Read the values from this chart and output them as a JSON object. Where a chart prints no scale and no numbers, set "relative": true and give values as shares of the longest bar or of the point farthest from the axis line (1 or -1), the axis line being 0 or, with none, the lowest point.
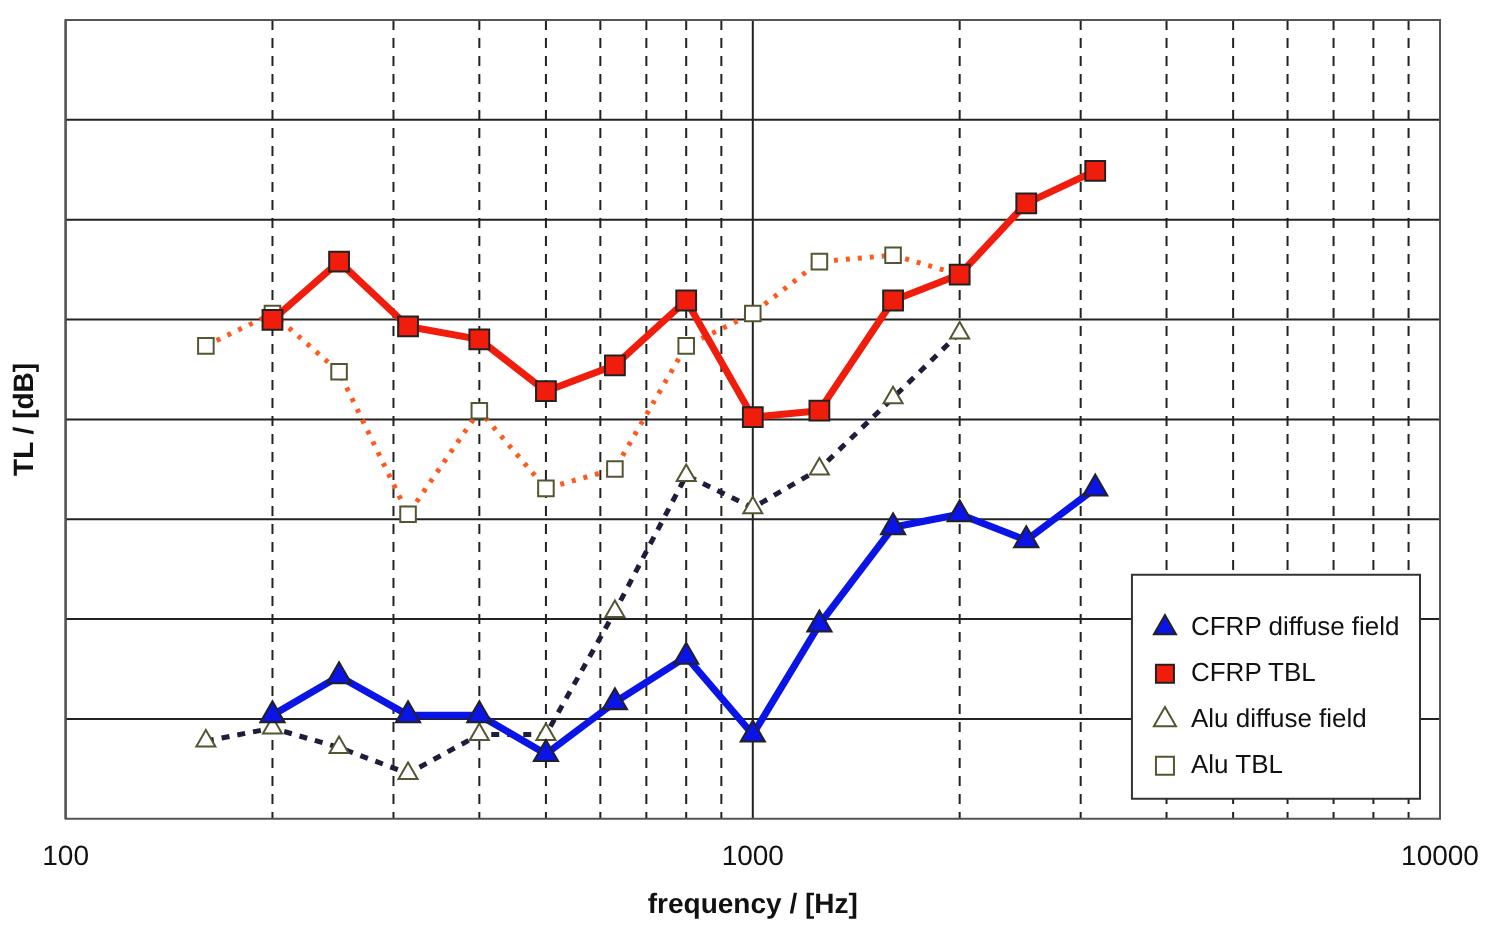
{
  "chart_data": {
    "type": "line",
    "xlabel": "frequency / [Hz]",
    "ylabel": "TL / [dB]",
    "relative": true,
    "log": "x",
    "xlim": [
      100,
      10000
    ],
    "xticks": [
      100,
      1000,
      10000
    ],
    "grid": true,
    "legend": "bottom right",
    "series": [
      {
        "name": "CFRP diffuse field",
        "color": "#0a14e6",
        "marker": "triangle",
        "line_style": "solid",
        "x": [
          200,
          250,
          315,
          400,
          500,
          630,
          800,
          1000,
          1250,
          1600,
          2000,
          2500,
          3150
        ],
        "values": [
          0.16,
          0.22,
          0.16,
          0.16,
          0.1,
          0.18,
          0.25,
          0.13,
          0.3,
          0.45,
          0.47,
          0.43,
          0.51
        ]
      },
      {
        "name": "CFRP TBL",
        "color": "#f01c0c",
        "marker": "square",
        "line_style": "solid",
        "x": [
          200,
          250,
          315,
          400,
          500,
          630,
          800,
          1000,
          1250,
          1600,
          2000,
          2500,
          3150
        ],
        "values": [
          0.77,
          0.86,
          0.76,
          0.74,
          0.66,
          0.7,
          0.8,
          0.62,
          0.63,
          0.8,
          0.84,
          0.95,
          1
        ]
      },
      {
        "name": "Alu diffuse field",
        "color": "#1e1e3c",
        "marker": "triangle",
        "line_style": "dashed",
        "x": [
          160,
          200,
          250,
          315,
          400,
          500,
          630,
          800,
          1000,
          1250,
          1600,
          2000
        ],
        "values": [
          0.12,
          0.14,
          0.11,
          0.07,
          0.13,
          0.13,
          0.32,
          0.53,
          0.48,
          0.54,
          0.65,
          0.75
        ]
      },
      {
        "name": "Alu TBL",
        "color": "#ff5a1e",
        "marker": "square",
        "line_style": "dotted",
        "x": [
          160,
          200,
          250,
          315,
          400,
          500,
          630,
          800,
          1000,
          1250,
          1600,
          2000
        ],
        "values": [
          0.73,
          0.78,
          0.69,
          0.47,
          0.63,
          0.51,
          0.54,
          0.73,
          0.78,
          0.86,
          0.87,
          0.84
        ]
      }
    ]
  }
}
